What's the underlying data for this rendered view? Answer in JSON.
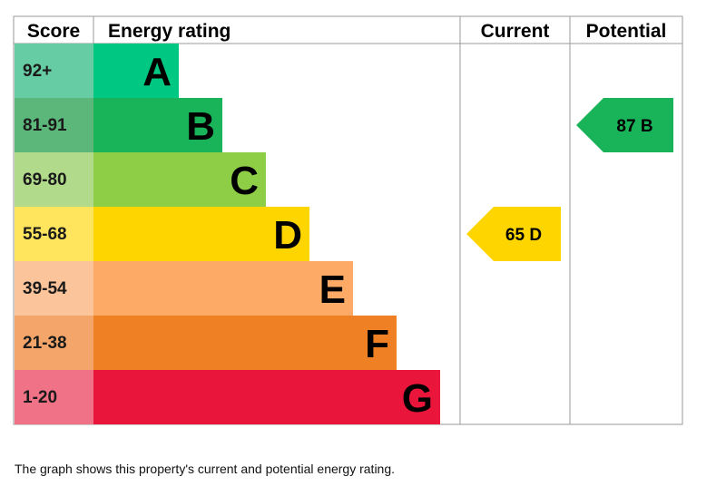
{
  "chart_data": {
    "type": "bar",
    "headers": {
      "score": "Score",
      "rating": "Energy rating",
      "current": "Current",
      "potential": "Potential"
    },
    "bands": [
      {
        "score": "92+",
        "letter": "A",
        "color": "#00c781",
        "score_bg": "#66cca3"
      },
      {
        "score": "81-91",
        "letter": "B",
        "color": "#19b459",
        "score_bg": "#5cb77a"
      },
      {
        "score": "69-80",
        "letter": "C",
        "color": "#8dce46",
        "score_bg": "#b1da8a"
      },
      {
        "score": "55-68",
        "letter": "D",
        "color": "#ffd500",
        "score_bg": "#ffe45e"
      },
      {
        "score": "39-54",
        "letter": "E",
        "color": "#fcaa65",
        "score_bg": "#fcc49b"
      },
      {
        "score": "21-38",
        "letter": "F",
        "color": "#ef8023",
        "score_bg": "#f4a66a"
      },
      {
        "score": "1-20",
        "letter": "G",
        "color": "#e9153b",
        "score_bg": "#f07286"
      }
    ],
    "current": {
      "value": 65,
      "letter": "D",
      "label": "65  D",
      "color": "#ffd500"
    },
    "potential": {
      "value": 87,
      "letter": "B",
      "label": "87  B",
      "color": "#19b459"
    }
  },
  "caption": "The graph shows this property's current and potential energy rating."
}
